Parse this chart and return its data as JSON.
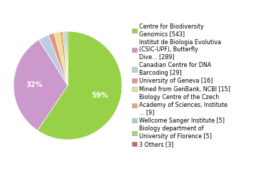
{
  "labels": [
    "Centre for Biodiversity\nGenomics [543]",
    "Institut de Biologia Evolutiva\n(CSIC-UPF), Butterfly\nDive... [289]",
    "Canadian Centre for DNA\nBarcoding [29]",
    "University of Geneva [16]",
    "Mined from GenBank, NCBI [15]",
    "Biology Centre of the Czech\nAcademy of Sciences, Institute\n... [9]",
    "Wellcome Sanger Institute [5]",
    "Biology department of\nUniversity of Florence [5]",
    "3 Others [3]"
  ],
  "values": [
    543,
    289,
    29,
    16,
    15,
    9,
    5,
    5,
    3
  ],
  "colors": [
    "#96d147",
    "#cc99cc",
    "#b8cfe0",
    "#e8908a",
    "#e8e08a",
    "#e8a870",
    "#a8cce0",
    "#a8d870",
    "#d06060"
  ],
  "startangle": 90,
  "background_color": "#ffffff",
  "legend_fontsize": 5.8,
  "figsize": [
    3.8,
    2.4
  ],
  "dpi": 100
}
